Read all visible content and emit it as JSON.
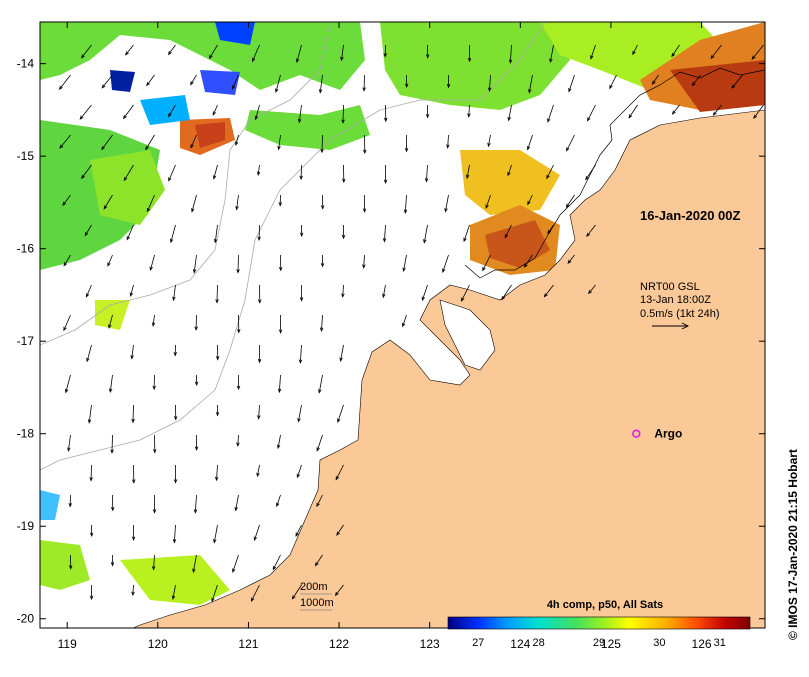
{
  "map": {
    "lon_ticks": [
      "119",
      "120",
      "121",
      "122",
      "123",
      "124",
      "125",
      "126"
    ],
    "lat_ticks": [
      "-14",
      "-15",
      "-16",
      "-17",
      "-18",
      "-19",
      "-20"
    ],
    "lon_range": [
      118.7,
      126.7
    ],
    "lat_range": [
      -20.1,
      -13.55
    ],
    "date_label": "16-Jan-2020 00Z",
    "current_legend": {
      "line1": "NRT00 GSL",
      "line2": "13-Jan 18:00Z",
      "line3": "0.5m/s (1kt 24h)"
    },
    "argo_label": "Argo",
    "argo_position": {
      "lon": 125.28,
      "lat": -18.0
    },
    "bathy_legend": {
      "line1": "200m",
      "line2": "1000m"
    },
    "colorbar": {
      "title": "4h comp, p50, All Sats",
      "ticks": [
        "27",
        "28",
        "29",
        "30",
        "31"
      ],
      "range": [
        26.5,
        31.5
      ],
      "colors": [
        "#00007f",
        "#0030ff",
        "#00a0ff",
        "#00e0d0",
        "#40e060",
        "#a0f020",
        "#ffff00",
        "#ffb000",
        "#ff5000",
        "#c00000",
        "#7f0000"
      ]
    },
    "credit": "© IMOS 17-Jan-2020 21:15 Hobart",
    "colors": {
      "land": "#fbc897",
      "argo": "#e020e0",
      "axis": "#000000"
    },
    "icons": [
      "argo-marker-icon",
      "current-arrow-icon"
    ]
  }
}
